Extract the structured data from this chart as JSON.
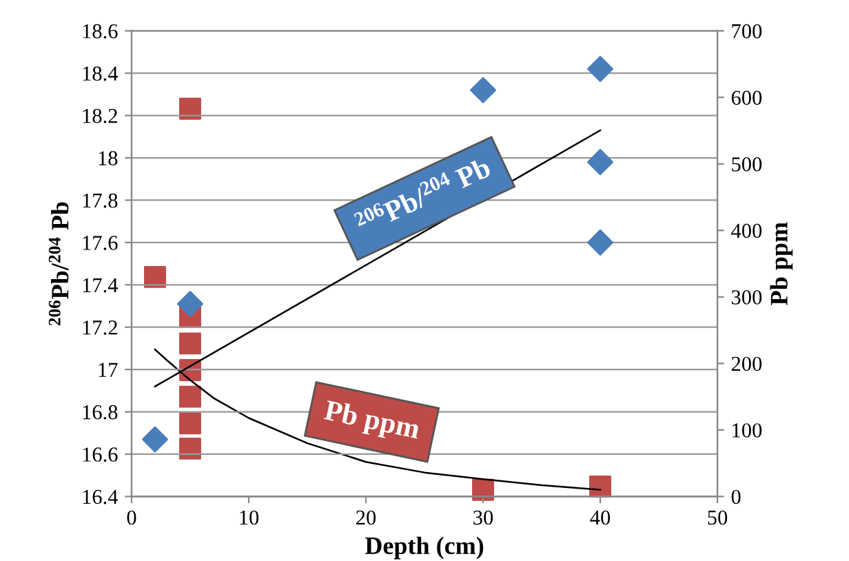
{
  "chart_data": {
    "type": "scatter",
    "xlabel": "Depth (cm)",
    "ylabel": "$^{206}$Pb/$^{204}$ Pb",
    "y2label": "Pb ppm",
    "xlim": [
      0,
      50
    ],
    "xticks": [
      0,
      10,
      20,
      30,
      40,
      50
    ],
    "ylim": [
      16.4,
      18.6
    ],
    "yticks": [
      16.4,
      16.6,
      16.8,
      17,
      17.2,
      17.4,
      17.6,
      17.8,
      18,
      18.2,
      18.4,
      18.6
    ],
    "y2lim": [
      0,
      700
    ],
    "y2ticks": [
      0,
      100,
      200,
      300,
      400,
      500,
      600,
      700
    ],
    "grid": "y",
    "legend": false,
    "series": [
      {
        "name": "$^{206}$Pb/$^{204}$ Pb",
        "marker": "diamond",
        "color": "#4a7ebb",
        "x": [
          2,
          5,
          30,
          40,
          40,
          40
        ],
        "values": [
          16.67,
          17.31,
          18.32,
          18.42,
          17.98,
          17.6
        ]
      },
      {
        "type": "line",
        "marker": "none",
        "color": "#000000",
        "x": [
          2,
          40
        ],
        "values": [
          16.92,
          18.13
        ]
      },
      {
        "name": "Pb ppm",
        "marker": "square",
        "axis": "y2",
        "color": "#be4b48",
        "x": [
          2,
          5,
          5,
          5,
          5,
          5,
          5,
          5,
          30,
          40
        ],
        "values": [
          330,
          583,
          270,
          230,
          190,
          150,
          110,
          72,
          10,
          15
        ]
      },
      {
        "type": "line",
        "marker": "none",
        "axis": "y2",
        "color": "#000000",
        "x": [
          2,
          3,
          5,
          7,
          10,
          15,
          20,
          25,
          30,
          35,
          40
        ],
        "values": [
          221,
          205,
          175,
          148,
          118,
          80,
          52,
          36,
          26,
          17,
          10
        ]
      }
    ]
  }
}
